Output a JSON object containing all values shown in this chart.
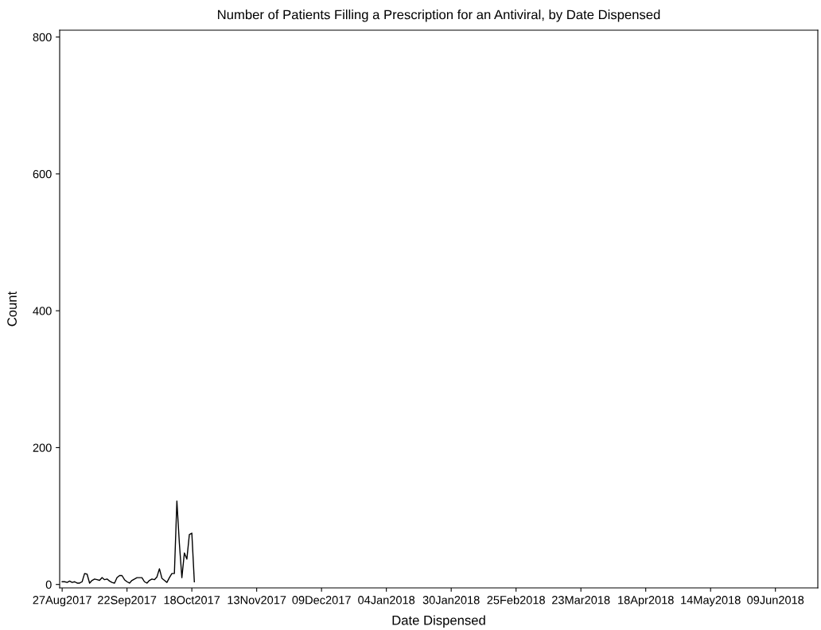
{
  "chart_data": {
    "type": "line",
    "title": "Number of Patients Filling a Prescription for an Antiviral, by Date Dispensed",
    "xlabel": "Date Dispensed",
    "ylabel": "Count",
    "x": [
      "2017-08-27",
      "2017-08-28",
      "2017-08-29",
      "2017-08-30",
      "2017-08-31",
      "2017-09-01",
      "2017-09-02",
      "2017-09-03",
      "2017-09-04",
      "2017-09-05",
      "2017-09-06",
      "2017-09-07",
      "2017-09-08",
      "2017-09-09",
      "2017-09-10",
      "2017-09-11",
      "2017-09-12",
      "2017-09-13",
      "2017-09-14",
      "2017-09-15",
      "2017-09-16",
      "2017-09-17",
      "2017-09-18",
      "2017-09-19",
      "2017-09-20",
      "2017-09-21",
      "2017-09-22",
      "2017-09-23",
      "2017-09-24",
      "2017-09-25",
      "2017-09-26",
      "2017-09-27",
      "2017-09-28",
      "2017-09-29",
      "2017-09-30",
      "2017-10-01",
      "2017-10-02",
      "2017-10-03",
      "2017-10-04",
      "2017-10-05",
      "2017-10-06",
      "2017-10-07",
      "2017-10-08",
      "2017-10-09",
      "2017-10-10",
      "2017-10-11",
      "2017-10-12",
      "2017-10-13",
      "2017-10-14",
      "2017-10-15",
      "2017-10-16",
      "2017-10-17",
      "2017-10-18",
      "2017-10-19"
    ],
    "series": [
      {
        "color": "#000000",
        "values": [
          4,
          4,
          3,
          5,
          3,
          4,
          2,
          2,
          4,
          16,
          15,
          2,
          6,
          8,
          7,
          6,
          10,
          7,
          8,
          5,
          3,
          2,
          10,
          13,
          13,
          7,
          4,
          2,
          6,
          8,
          10,
          10,
          10,
          4,
          2,
          6,
          8,
          7,
          11,
          23,
          9,
          6,
          3,
          10,
          16,
          16,
          122,
          60,
          10,
          46,
          37,
          73,
          75,
          4
        ]
      }
    ],
    "xlim": [
      "2017-08-26",
      "2018-06-26"
    ],
    "xticks": [
      {
        "value": "2017-08-27",
        "label": "27Aug2017"
      },
      {
        "value": "2017-09-22",
        "label": "22Sep2017"
      },
      {
        "value": "2017-10-18",
        "label": "18Oct2017"
      },
      {
        "value": "2017-11-13",
        "label": "13Nov2017"
      },
      {
        "value": "2017-12-09",
        "label": "09Dec2017"
      },
      {
        "value": "2018-01-04",
        "label": "04Jan2018"
      },
      {
        "value": "2018-01-30",
        "label": "30Jan2018"
      },
      {
        "value": "2018-02-25",
        "label": "25Feb2018"
      },
      {
        "value": "2018-03-23",
        "label": "23Mar2018"
      },
      {
        "value": "2018-04-18",
        "label": "18Apr2018"
      },
      {
        "value": "2018-05-14",
        "label": "14May2018"
      },
      {
        "value": "2018-06-09",
        "label": "09Jun2018"
      }
    ],
    "ylim": [
      -5,
      810
    ],
    "yticks": [
      0,
      200,
      400,
      600,
      800
    ],
    "marker": "none",
    "line_style": "solid"
  }
}
